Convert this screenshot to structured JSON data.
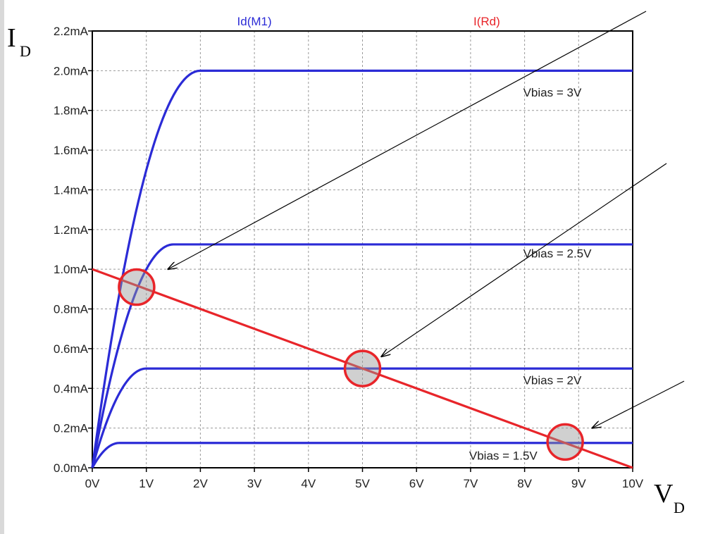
{
  "chart_data": {
    "type": "line",
    "title": "",
    "xlabel_main": "V",
    "xlabel_sub": "D",
    "ylabel_main": "I",
    "ylabel_sub": "D",
    "xlim": [
      0,
      10
    ],
    "ylim": [
      0,
      2.2
    ],
    "grid": true,
    "x_ticks": [
      0,
      1,
      2,
      3,
      4,
      5,
      6,
      7,
      8,
      9,
      10
    ],
    "x_tick_labels": [
      "0V",
      "1V",
      "2V",
      "3V",
      "4V",
      "5V",
      "6V",
      "7V",
      "8V",
      "9V",
      "10V"
    ],
    "y_ticks": [
      0,
      0.2,
      0.4,
      0.6,
      0.8,
      1.0,
      1.2,
      1.4,
      1.6,
      1.8,
      2.0,
      2.2
    ],
    "y_tick_labels": [
      "0.0mA",
      "0.2mA",
      "0.4mA",
      "0.6mA",
      "0.8mA",
      "1.0mA",
      "1.2mA",
      "1.4mA",
      "1.6mA",
      "1.8mA",
      "2.0mA",
      "2.2mA"
    ],
    "legend": [
      {
        "label": "Id(M1)",
        "color": "#2b2bd6"
      },
      {
        "label": "I(Rd)",
        "color": "#e8252a"
      }
    ],
    "series": [
      {
        "name": "Id(M1)",
        "color": "#2b2bd6",
        "label": "Vbias = 3V",
        "sat_v": 2.0,
        "sat_i": 2.0
      },
      {
        "name": "Id(M1)",
        "color": "#2b2bd6",
        "label": "Vbias = 2.5V",
        "sat_v": 1.5,
        "sat_i": 1.125
      },
      {
        "name": "Id(M1)",
        "color": "#2b2bd6",
        "label": "Vbias = 2V",
        "sat_v": 1.0,
        "sat_i": 0.5
      },
      {
        "name": "Id(M1)",
        "color": "#2b2bd6",
        "label": "Vbias = 1.5V",
        "sat_v": 0.5,
        "sat_i": 0.125
      }
    ],
    "load_line": {
      "name": "I(Rd)",
      "color": "#e8252a",
      "points": [
        [
          0,
          1.0
        ],
        [
          10,
          0
        ]
      ]
    },
    "operating_points": [
      {
        "x": 0.82,
        "y": 0.91
      },
      {
        "x": 5.0,
        "y": 0.5
      },
      {
        "x": 8.75,
        "y": 0.13
      }
    ],
    "curve_labels": [
      {
        "text": "Vbias = 3V",
        "x": 8.0,
        "y": 1.87
      },
      {
        "text": "Vbias = 2.5V",
        "x": 8.0,
        "y": 1.06
      },
      {
        "text": "Vbias = 2V",
        "x": 8.0,
        "y": 0.42
      },
      {
        "text": "Vbias = 1.5V",
        "x": 7.0,
        "y": 0.04
      }
    ]
  }
}
